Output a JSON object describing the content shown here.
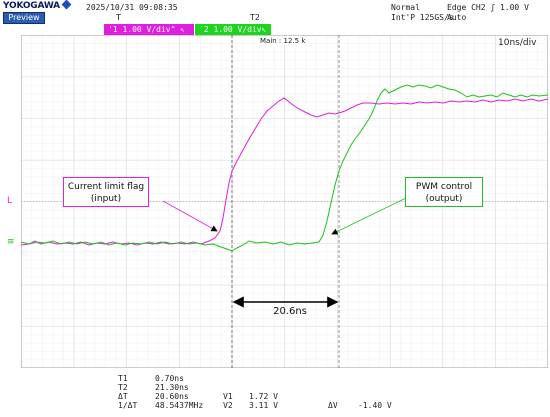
{
  "header": {
    "brand": "YOKOGAWA",
    "preview_tab": "Preview",
    "datetime": "2025/10/31 09:08:35",
    "trigger_status": "Normal",
    "trigger_setting": "Edge CH2 ʃ 1.00 V",
    "sample_rate": "Int'P 125GS/s",
    "acq_mode": "Auto",
    "ch1_tag": "'1 1.00 V/div\" ↖",
    "ch2_tag": "′2 1.00 V/div↖"
  },
  "display": {
    "main_zoom": "Main : 12.5 k",
    "time_div": "10ns/div",
    "cursor_t1_marker": "T",
    "cursor_t2_marker": "T2",
    "trigger_level_marker": "L",
    "ch_offset_marker": "≡",
    "accent_ch1": "#e01ee0",
    "accent_ch2": "#1fc01f"
  },
  "annotations": {
    "ch1_callout": "Current limit flag\n(input)",
    "ch2_callout": "PWM control\n(output)",
    "measurement": "20.6ns"
  },
  "measurements": {
    "t1_label": "T1",
    "t1_value": "0.70ns",
    "t2_label": "T2",
    "t2_value": "21.30ns",
    "dt_label": "ΔT",
    "dt_value": "20.60ns",
    "inv_dt_label": "1/ΔT",
    "inv_dt_value": "48.5437MHz",
    "v1_label": "V1",
    "v1_value": "1.72 V",
    "v2_label": "V2",
    "v2_value": "3.11 V",
    "dv_label": "ΔV",
    "dv_value": "-1.40 V"
  }
}
